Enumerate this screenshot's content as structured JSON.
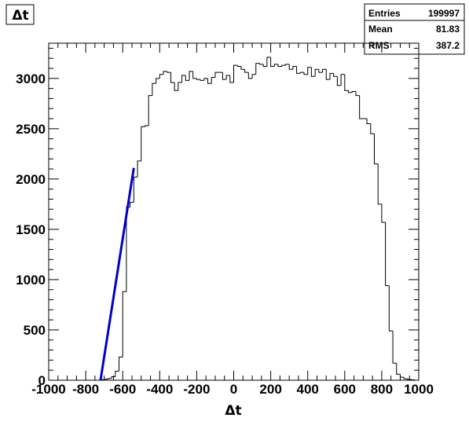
{
  "chart_data": {
    "type": "bar",
    "title": "Δt",
    "xlabel": "Δt",
    "ylabel": "",
    "xlim": [
      -1000,
      1000
    ],
    "ylim": [
      0,
      3350
    ],
    "grid": false,
    "x_ticks": [
      -1000,
      -800,
      -600,
      -400,
      -200,
      0,
      200,
      400,
      600,
      800,
      1000
    ],
    "y_ticks": [
      0,
      500,
      1000,
      1500,
      2000,
      2500,
      3000
    ],
    "stats": {
      "entries_label": "Entries",
      "entries_value": "199997",
      "mean_label": "Mean",
      "mean_value": "81.83",
      "rms_label": "RMS",
      "rms_value": "387.2"
    },
    "histogram": {
      "bin_width": 20,
      "bins_from": -1000,
      "counts": [
        0,
        0,
        0,
        0,
        0,
        0,
        0,
        0,
        0,
        0,
        0,
        0,
        0,
        0,
        5,
        10,
        18,
        35,
        90,
        230,
        880,
        1720,
        1770,
        2020,
        2180,
        2520,
        2530,
        2830,
        2950,
        3000,
        3040,
        3070,
        3060,
        2960,
        2880,
        2960,
        3030,
        2980,
        3070,
        3000,
        2990,
        2980,
        3000,
        2950,
        3010,
        3060,
        3060,
        2990,
        3030,
        2960,
        3130,
        3120,
        3090,
        3060,
        3000,
        3040,
        3150,
        3140,
        3120,
        3210,
        3120,
        3140,
        3120,
        3130,
        3140,
        3090,
        3120,
        3050,
        3060,
        3040,
        3110,
        3020,
        3090,
        3060,
        3090,
        2990,
        3050,
        3020,
        2930,
        3040,
        2880,
        2860,
        2870,
        2830,
        2600,
        2600,
        2550,
        2450,
        2150,
        1750,
        1570,
        940,
        490,
        170,
        60,
        30,
        15,
        8,
        4,
        0
      ]
    },
    "fit_line": {
      "name": "fit",
      "x": [
        -720,
        -540
      ],
      "y": [
        0,
        2110
      ]
    }
  }
}
